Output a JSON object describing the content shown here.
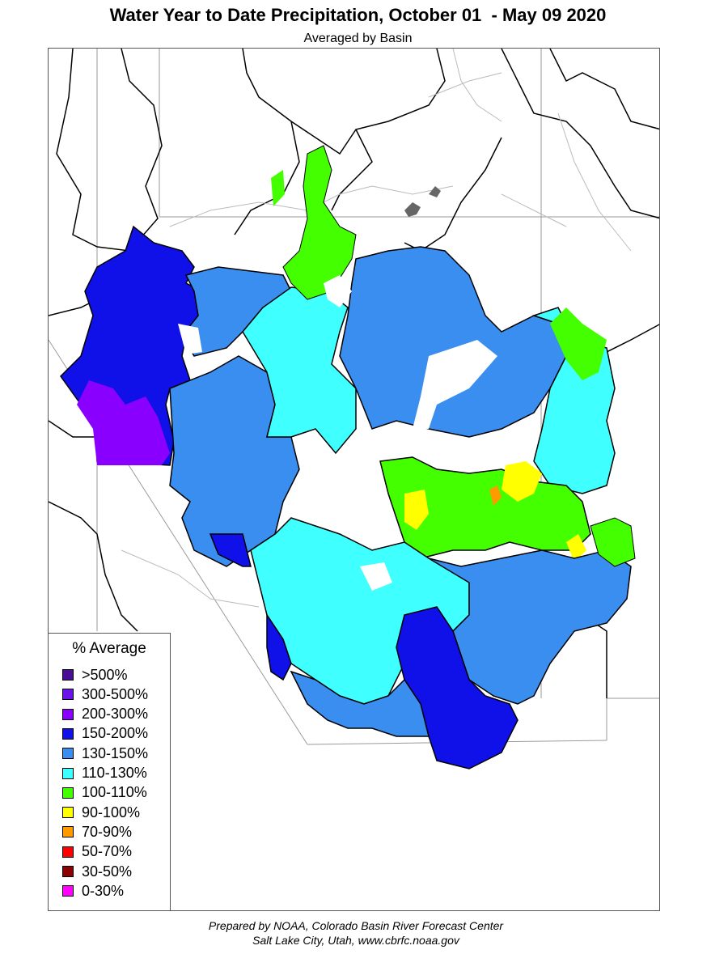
{
  "title": "Water Year to Date Precipitation, October 01  - May 09 2020",
  "subtitle": "Averaged by Basin",
  "legend": {
    "title": "% Average",
    "items": [
      {
        "label": ">500%",
        "color": "#4b0c96"
      },
      {
        "label": "300-500%",
        "color": "#6a12e8"
      },
      {
        "label": "200-300%",
        "color": "#8a00ff"
      },
      {
        "label": "150-200%",
        "color": "#1010e8"
      },
      {
        "label": "130-150%",
        "color": "#3a8ef0"
      },
      {
        "label": "110-130%",
        "color": "#40ffff"
      },
      {
        "label": "100-110%",
        "color": "#44ff00"
      },
      {
        "label": "90-100%",
        "color": "#ffff00"
      },
      {
        "label": "70-90%",
        "color": "#ff9a00"
      },
      {
        "label": "50-70%",
        "color": "#ff0000"
      },
      {
        "label": "30-50%",
        "color": "#8b0000"
      },
      {
        "label": "0-30%",
        "color": "#ff00ff"
      }
    ]
  },
  "credits": {
    "line1": "Prepared by NOAA, Colorado Basin River Forecast Center",
    "line2": "Salt Lake City, Utah, www.cbrfc.noaa.gov"
  },
  "map": {
    "colors": {
      "c150_200": "#1010e8",
      "c130_150": "#3a8ef0",
      "c110_130": "#40ffff",
      "c100_110": "#44ff00",
      "c90_100": "#ffff00",
      "c70_90": "#ff9a00",
      "c200_300": "#8a00ff",
      "lake": "#666666",
      "basin_border": "#000000",
      "river": "#888888",
      "state_line": "#999999"
    }
  }
}
